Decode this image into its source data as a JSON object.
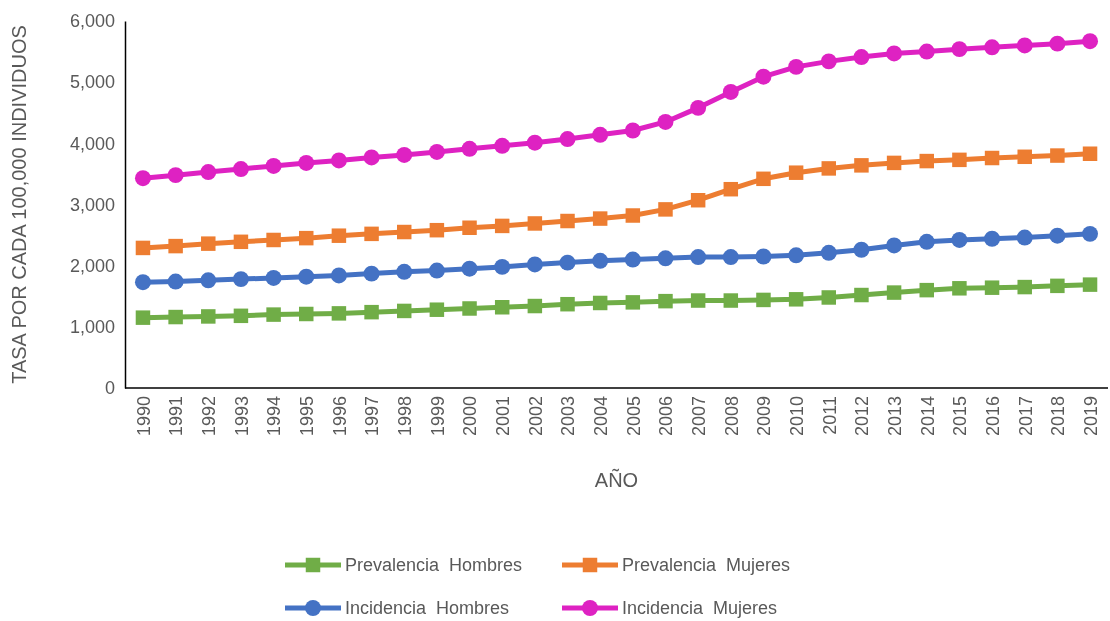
{
  "chart_data": {
    "type": "line",
    "xlabel": "AÑO",
    "ylabel": "TASA POR CADA 100,000 INDIVIDUOS",
    "categories": [
      "1990",
      "1991",
      "1992",
      "1993",
      "1994",
      "1995",
      "1996",
      "1997",
      "1998",
      "1999",
      "2000",
      "2001",
      "2002",
      "2003",
      "2004",
      "2005",
      "2006",
      "2007",
      "2008",
      "2009",
      "2010",
      "2011",
      "2012",
      "2013",
      "2014",
      "2015",
      "2016",
      "2017",
      "2018",
      "2019"
    ],
    "ylim": [
      0,
      6000
    ],
    "yticks": [
      {
        "value": 0,
        "label": "0"
      },
      {
        "value": 1000,
        "label": "1,000"
      },
      {
        "value": 2000,
        "label": "2,000"
      },
      {
        "value": 3000,
        "label": "3,000"
      },
      {
        "value": 4000,
        "label": "4,000"
      },
      {
        "value": 5000,
        "label": "5,000"
      },
      {
        "value": 6000,
        "label": "6,000"
      }
    ],
    "grid": false,
    "legend": "bottom",
    "line_style": "solid",
    "series": [
      {
        "name": "Prevalencia  Hombres",
        "color": "#70ad47",
        "marker": "square",
        "values": [
          1150,
          1160,
          1170,
          1180,
          1200,
          1210,
          1220,
          1240,
          1260,
          1280,
          1300,
          1320,
          1340,
          1370,
          1390,
          1400,
          1420,
          1430,
          1430,
          1440,
          1450,
          1480,
          1520,
          1560,
          1600,
          1630,
          1640,
          1650,
          1670,
          1690
        ]
      },
      {
        "name": "Prevalencia  Mujeres",
        "color": "#ed7d31",
        "marker": "square",
        "values": [
          2290,
          2320,
          2360,
          2390,
          2420,
          2450,
          2490,
          2520,
          2550,
          2580,
          2620,
          2650,
          2690,
          2730,
          2770,
          2820,
          2920,
          3070,
          3250,
          3420,
          3520,
          3590,
          3640,
          3680,
          3710,
          3730,
          3760,
          3780,
          3800,
          3830
        ]
      },
      {
        "name": "Incidencia  Hombres",
        "color": "#4472c4",
        "marker": "circle",
        "values": [
          1730,
          1740,
          1760,
          1780,
          1800,
          1820,
          1840,
          1870,
          1900,
          1920,
          1950,
          1980,
          2020,
          2050,
          2080,
          2100,
          2120,
          2140,
          2140,
          2150,
          2170,
          2210,
          2260,
          2330,
          2390,
          2420,
          2440,
          2460,
          2490,
          2520
        ]
      },
      {
        "name": "Incidencia  Mujeres",
        "color": "#de22c2",
        "marker": "circle",
        "values": [
          3430,
          3480,
          3530,
          3580,
          3630,
          3680,
          3720,
          3770,
          3810,
          3860,
          3910,
          3960,
          4010,
          4070,
          4140,
          4210,
          4350,
          4580,
          4840,
          5090,
          5250,
          5340,
          5410,
          5470,
          5500,
          5540,
          5570,
          5600,
          5630,
          5670
        ]
      }
    ]
  }
}
